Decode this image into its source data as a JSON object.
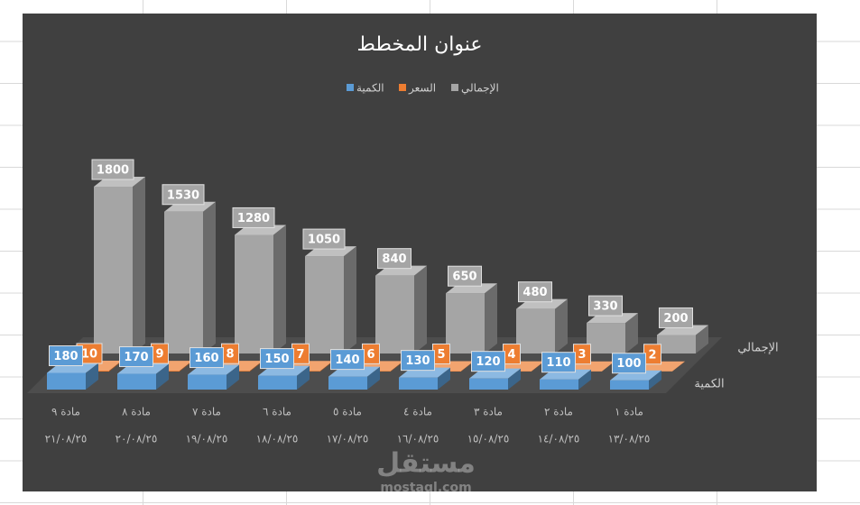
{
  "chart_data": {
    "type": "bar3d",
    "title": "عنوان المخطط",
    "categories": [
      "مادة ١",
      "مادة ٢",
      "مادة ٣",
      "مادة ٤",
      "مادة ٥",
      "مادة ٦",
      "مادة ٧",
      "مادة ٨",
      "مادة ٩"
    ],
    "category_dates": [
      "١٣/٠٨/٢٥",
      "١٤/٠٨/٢٥",
      "١٥/٠٨/٢٥",
      "١٦/٠٨/٢٥",
      "١٧/٠٨/٢٥",
      "١٨/٠٨/٢٥",
      "١٩/٠٨/٢٥",
      "٢٠/٠٨/٢٥",
      "٢١/٠٨/٢٥"
    ],
    "x_reversed": true,
    "series": [
      {
        "name": "الكمية",
        "color": "#5b9bd5",
        "values": [
          100,
          110,
          120,
          130,
          140,
          150,
          160,
          170,
          180
        ]
      },
      {
        "name": "السعر",
        "color": "#ed7d31",
        "values": [
          2,
          3,
          4,
          5,
          6,
          7,
          8,
          9,
          10
        ]
      },
      {
        "name": "الإجمالي",
        "color": "#a5a5a5",
        "values": [
          200,
          330,
          480,
          650,
          840,
          1050,
          1280,
          1530,
          1800
        ]
      }
    ],
    "watermark": [
      "مستقل",
      "mostaql.com"
    ]
  }
}
